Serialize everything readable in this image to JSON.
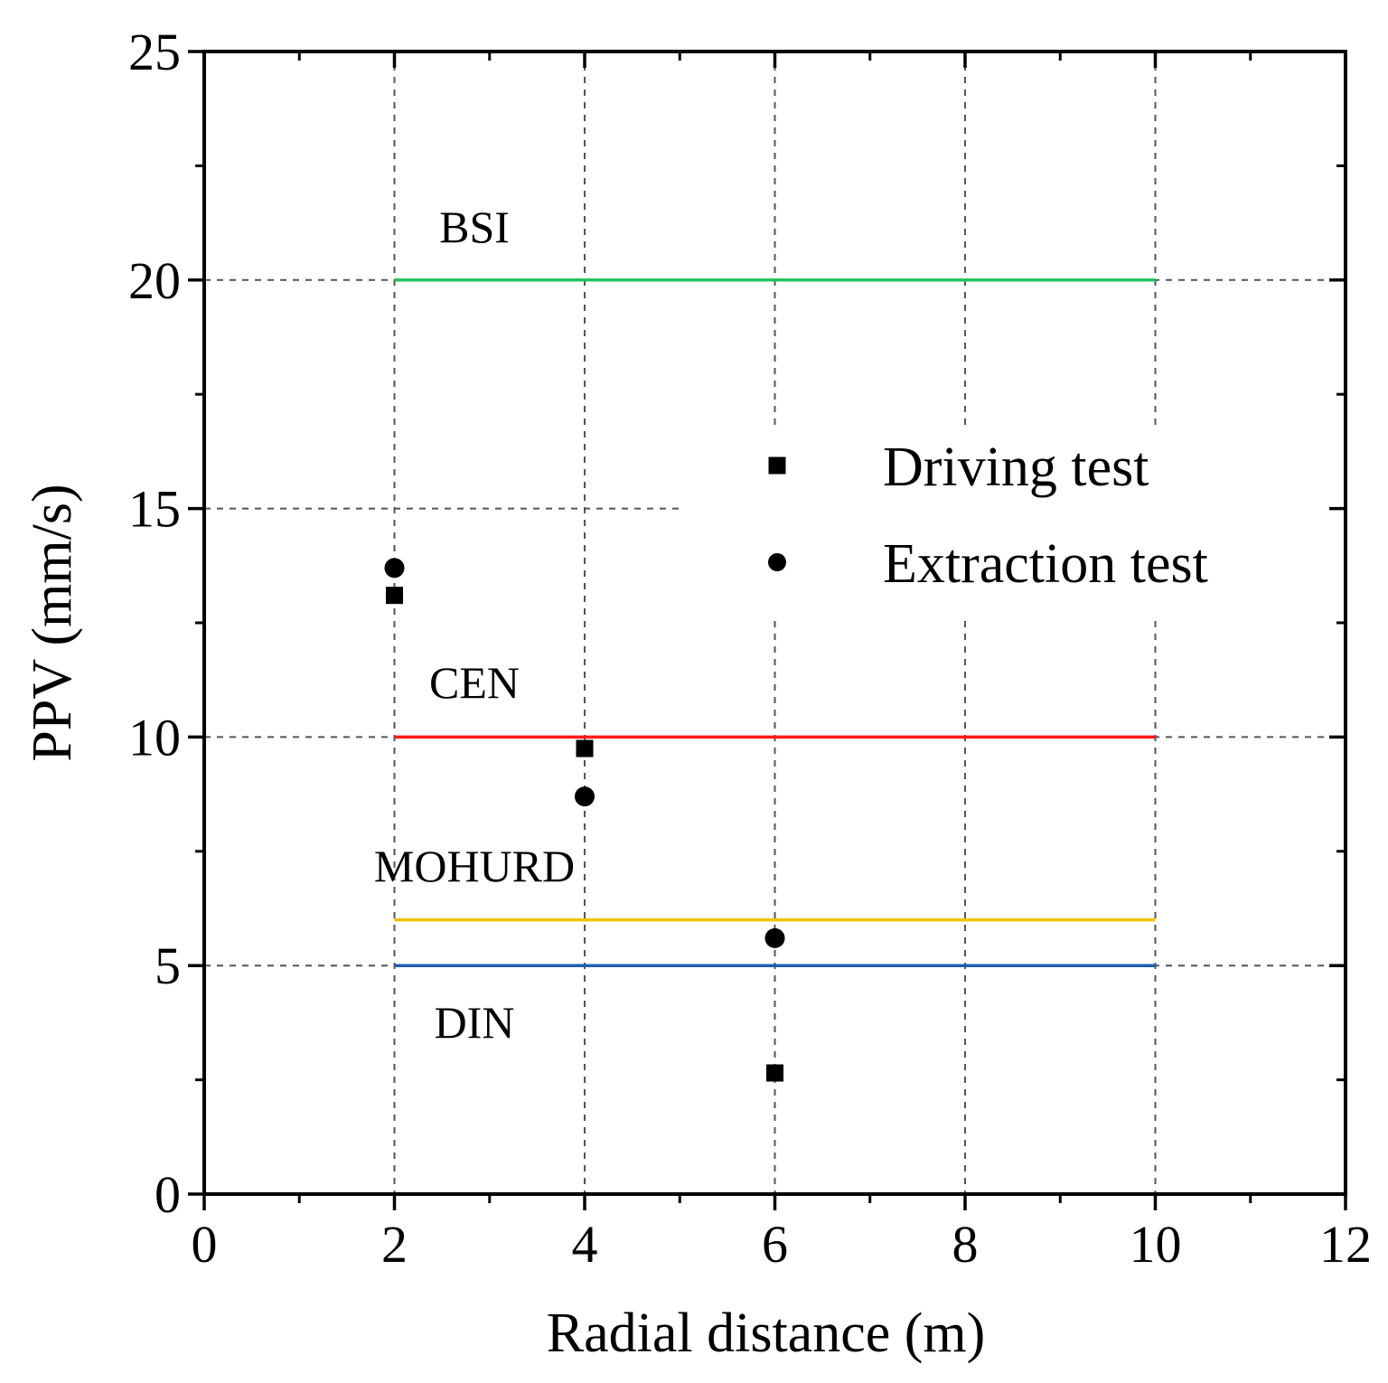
{
  "chart_data": {
    "type": "scatter",
    "title": "",
    "xlabel": "Radial distance (m)",
    "ylabel": "PPV (mm/s)",
    "xlim": [
      0,
      12
    ],
    "ylim": [
      0,
      25
    ],
    "xticks": [
      0,
      2,
      4,
      6,
      8,
      10,
      12
    ],
    "yticks": [
      0,
      5,
      10,
      15,
      20,
      25
    ],
    "grid": true,
    "legend_position": "right-middle",
    "series": [
      {
        "name": "Driving test",
        "marker": "square",
        "x": [
          2,
          4,
          6
        ],
        "y": [
          13.1,
          9.75,
          2.65
        ]
      },
      {
        "name": "Extraction test",
        "marker": "circle",
        "x": [
          2,
          4,
          6
        ],
        "y": [
          13.7,
          8.7,
          5.6
        ]
      }
    ],
    "reference_lines": [
      {
        "name": "BSI",
        "y": 20,
        "x_range": [
          2,
          10
        ],
        "color": "#22c55e"
      },
      {
        "name": "CEN",
        "y": 10,
        "x_range": [
          2,
          10
        ],
        "color": "#ff1a1a"
      },
      {
        "name": "MOHURD",
        "y": 6,
        "x_range": [
          2,
          10
        ],
        "color": "#f2c200"
      },
      {
        "name": "DIN",
        "y": 5,
        "x_range": [
          2,
          10
        ],
        "color": "#1f5fb0"
      }
    ]
  }
}
